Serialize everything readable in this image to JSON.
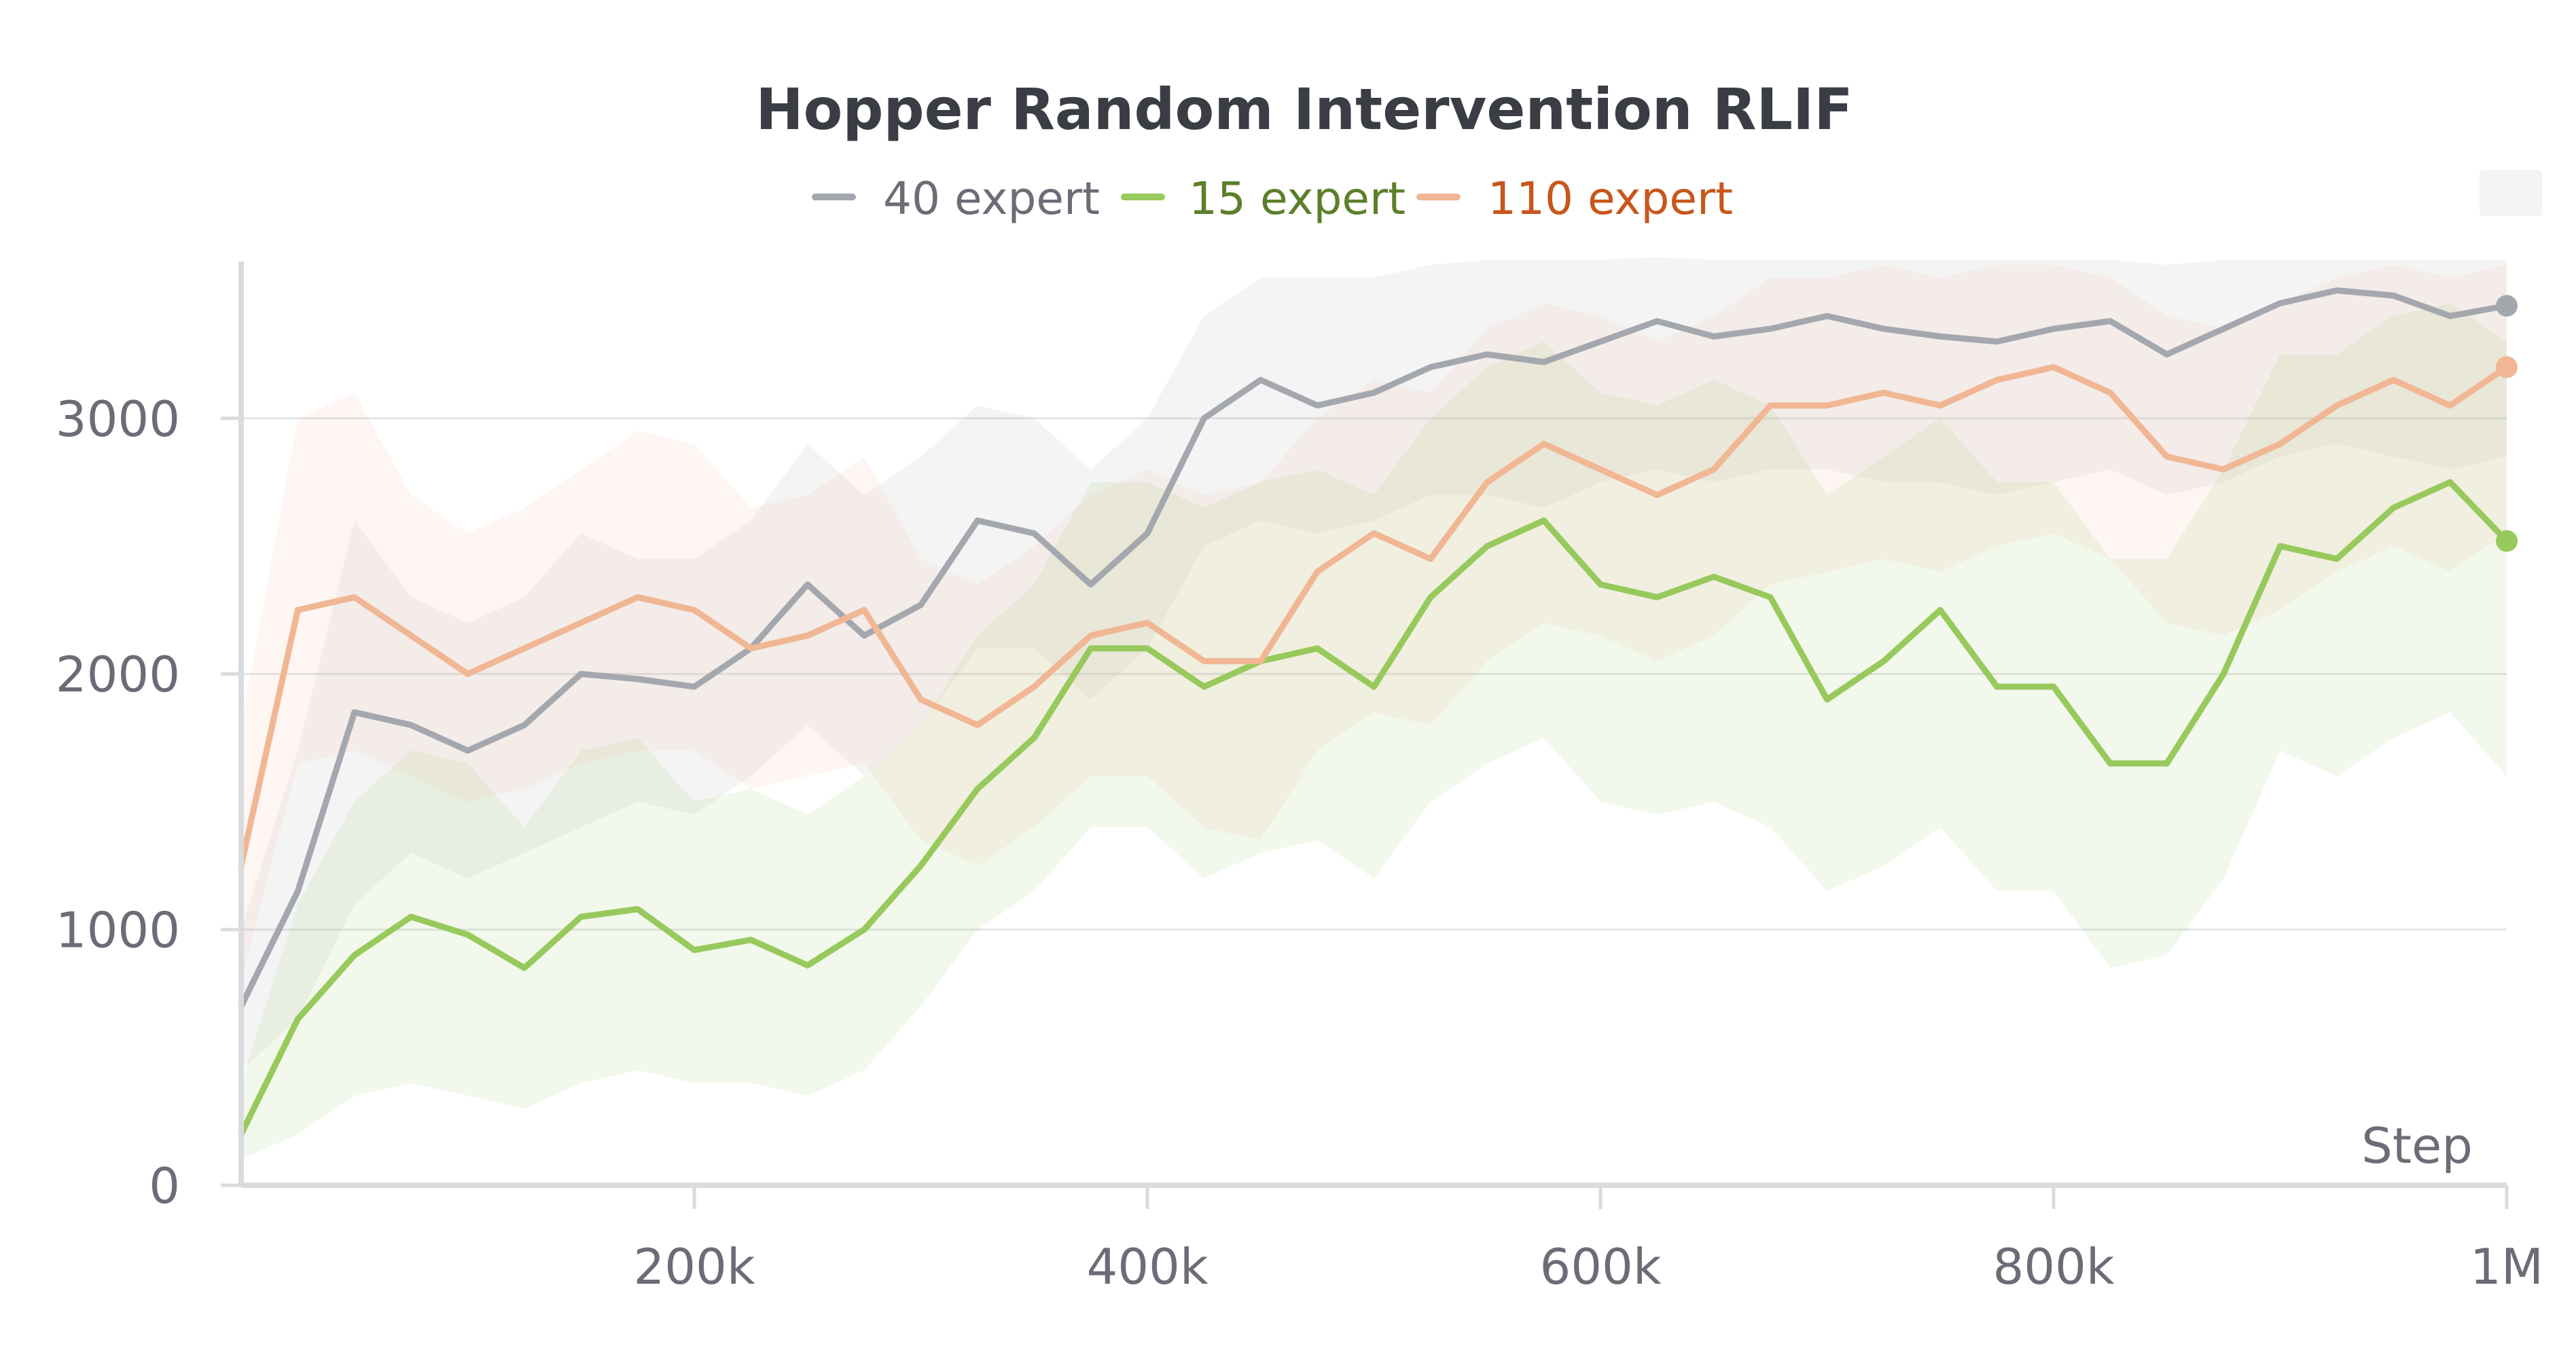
{
  "chart_data": {
    "type": "line",
    "title": "Hopper Random Intervention RLIF",
    "xlabel": "Step",
    "ylabel": "",
    "xlim": [
      0,
      1000000
    ],
    "ylim": [
      0,
      3600
    ],
    "xticks": [
      200000,
      400000,
      600000,
      800000,
      1000000
    ],
    "xtick_labels": [
      "200k",
      "400k",
      "600k",
      "800k",
      "1M"
    ],
    "yticks": [
      0,
      1000,
      2000,
      3000
    ],
    "ytick_labels": [
      "0",
      "1000",
      "2000",
      "3000"
    ],
    "grid": true,
    "legend_position": "top-center",
    "series": [
      {
        "name": "40 expert",
        "color": "#a4a8ae",
        "x": [
          0,
          25000,
          50000,
          75000,
          100000,
          125000,
          150000,
          175000,
          200000,
          225000,
          250000,
          275000,
          300000,
          325000,
          350000,
          375000,
          400000,
          425000,
          450000,
          475000,
          500000,
          525000,
          550000,
          575000,
          600000,
          625000,
          650000,
          675000,
          700000,
          725000,
          750000,
          775000,
          800000,
          825000,
          850000,
          875000,
          900000,
          925000,
          950000,
          975000,
          1000000
        ],
        "values": [
          700,
          1150,
          1850,
          1800,
          1700,
          1800,
          2000,
          1980,
          1950,
          2100,
          2350,
          2150,
          2270,
          2600,
          2550,
          2350,
          2550,
          3000,
          3150,
          3050,
          3100,
          3200,
          3250,
          3220,
          3300,
          3380,
          3320,
          3350,
          3400,
          3350,
          3320,
          3300,
          3350,
          3380,
          3250,
          3350,
          3450,
          3500,
          3480,
          3400,
          3440
        ],
        "band_lower": [
          450,
          650,
          1100,
          1300,
          1200,
          1300,
          1400,
          1500,
          1450,
          1600,
          1800,
          1600,
          1800,
          2100,
          2100,
          1900,
          2100,
          2500,
          2600,
          2550,
          2600,
          2700,
          2700,
          2650,
          2750,
          2800,
          2750,
          2800,
          2800,
          2750,
          2750,
          2700,
          2750,
          2800,
          2700,
          2750,
          2850,
          2900,
          2850,
          2800,
          2850
        ],
        "band_upper": [
          1000,
          1700,
          2600,
          2300,
          2200,
          2300,
          2550,
          2450,
          2450,
          2600,
          2900,
          2700,
          2850,
          3050,
          3000,
          2800,
          3000,
          3400,
          3550,
          3550,
          3550,
          3600,
          3620,
          3620,
          3620,
          3630,
          3620,
          3620,
          3620,
          3620,
          3620,
          3620,
          3620,
          3620,
          3600,
          3620,
          3620,
          3620,
          3620,
          3620,
          3620
        ]
      },
      {
        "name": "15 expert",
        "color": "#97c95c",
        "x": [
          0,
          25000,
          50000,
          75000,
          100000,
          125000,
          150000,
          175000,
          200000,
          225000,
          250000,
          275000,
          300000,
          325000,
          350000,
          375000,
          400000,
          425000,
          450000,
          475000,
          500000,
          525000,
          550000,
          575000,
          600000,
          625000,
          650000,
          675000,
          700000,
          725000,
          750000,
          775000,
          800000,
          825000,
          850000,
          875000,
          900000,
          925000,
          950000,
          975000,
          1000000
        ],
        "values": [
          200,
          650,
          900,
          1050,
          980,
          850,
          1050,
          1080,
          920,
          960,
          860,
          1000,
          1250,
          1550,
          1750,
          2100,
          2100,
          1950,
          2050,
          2100,
          1950,
          2300,
          2500,
          2600,
          2350,
          2300,
          2380,
          2300,
          1900,
          2050,
          2250,
          1950,
          1950,
          1650,
          1650,
          2000,
          2500,
          2450,
          2650,
          2750,
          2520
        ],
        "band_lower": [
          100,
          200,
          350,
          400,
          350,
          300,
          400,
          450,
          400,
          400,
          350,
          450,
          700,
          1000,
          1150,
          1400,
          1400,
          1200,
          1300,
          1350,
          1200,
          1500,
          1650,
          1750,
          1500,
          1450,
          1500,
          1400,
          1150,
          1250,
          1400,
          1150,
          1150,
          850,
          900,
          1200,
          1700,
          1600,
          1750,
          1850,
          1600
        ],
        "band_upper": [
          400,
          1100,
          1500,
          1700,
          1650,
          1400,
          1700,
          1750,
          1500,
          1550,
          1450,
          1600,
          1800,
          2150,
          2350,
          2750,
          2750,
          2650,
          2750,
          2800,
          2700,
          3000,
          3200,
          3300,
          3100,
          3050,
          3150,
          3050,
          2700,
          2850,
          3000,
          2750,
          2750,
          2450,
          2450,
          2800,
          3250,
          3250,
          3400,
          3450,
          3300
        ]
      },
      {
        "name": "110 expert",
        "color": "#f1b693",
        "x": [
          0,
          25000,
          50000,
          75000,
          100000,
          125000,
          150000,
          175000,
          200000,
          225000,
          250000,
          275000,
          300000,
          325000,
          350000,
          375000,
          400000,
          425000,
          450000,
          475000,
          500000,
          525000,
          550000,
          575000,
          600000,
          625000,
          650000,
          675000,
          700000,
          725000,
          750000,
          775000,
          800000,
          825000,
          850000,
          875000,
          900000,
          925000,
          950000,
          975000,
          1000000
        ],
        "values": [
          1250,
          2250,
          2300,
          2150,
          2000,
          2100,
          2200,
          2300,
          2250,
          2100,
          2150,
          2250,
          1900,
          1800,
          1950,
          2150,
          2200,
          2050,
          2050,
          2400,
          2550,
          2450,
          2750,
          2900,
          2800,
          2700,
          2800,
          3050,
          3050,
          3100,
          3050,
          3150,
          3200,
          3100,
          2850,
          2800,
          2900,
          3050,
          3150,
          3050,
          3200
        ],
        "band_lower": [
          800,
          1650,
          1700,
          1600,
          1500,
          1550,
          1650,
          1700,
          1700,
          1550,
          1600,
          1650,
          1350,
          1250,
          1400,
          1600,
          1600,
          1400,
          1350,
          1700,
          1850,
          1800,
          2050,
          2200,
          2150,
          2050,
          2150,
          2350,
          2400,
          2450,
          2400,
          2500,
          2550,
          2450,
          2200,
          2150,
          2250,
          2400,
          2500,
          2400,
          2550
        ],
        "band_upper": [
          1800,
          3000,
          3100,
          2700,
          2550,
          2650,
          2800,
          2950,
          2900,
          2650,
          2700,
          2850,
          2450,
          2350,
          2500,
          2700,
          2800,
          2700,
          2750,
          3000,
          3150,
          3100,
          3350,
          3450,
          3400,
          3300,
          3400,
          3550,
          3550,
          3600,
          3550,
          3600,
          3600,
          3550,
          3400,
          3350,
          3450,
          3550,
          3600,
          3550,
          3600
        ]
      }
    ]
  }
}
